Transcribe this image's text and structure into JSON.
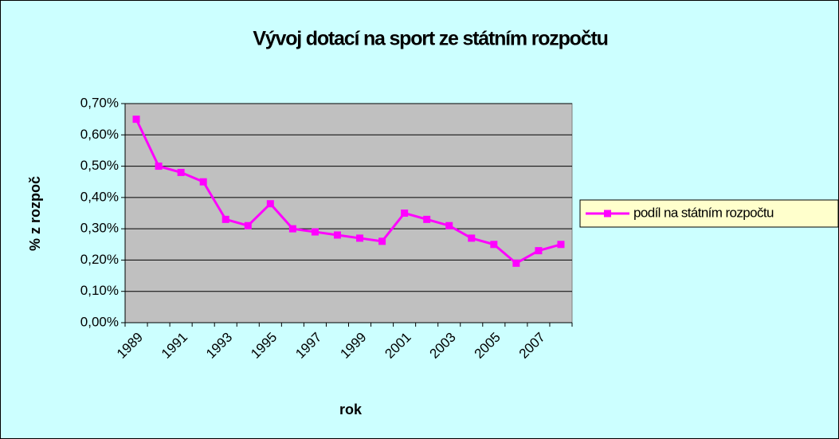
{
  "chart_data": {
    "type": "line",
    "title": "Vývoj dotací na sport ze státním rozpočtu",
    "x_label": "rok",
    "y_label": "% z rozpoč",
    "categories": [
      "1989",
      null,
      "1991",
      null,
      "1993",
      null,
      "1995",
      null,
      "1997",
      null,
      "1999",
      null,
      "2001",
      null,
      "2003",
      null,
      "2005",
      null,
      "2007",
      null
    ],
    "series": [
      {
        "name": "podíl na státním rozpočtu",
        "color": "#ff00ff",
        "values": [
          0.65,
          0.5,
          0.48,
          0.45,
          0.33,
          0.31,
          0.38,
          0.3,
          0.29,
          0.28,
          0.27,
          0.26,
          0.35,
          0.33,
          0.31,
          0.27,
          0.25,
          0.19,
          0.23,
          0.25
        ]
      }
    ],
    "ylim": [
      0,
      0.7
    ],
    "yticks": [
      {
        "value": 0,
        "label": "0,00%"
      },
      {
        "value": 0.1,
        "label": "0,10%"
      },
      {
        "value": 0.2,
        "label": "0,20%"
      },
      {
        "value": 0.3,
        "label": "0,30%"
      },
      {
        "value": 0.4,
        "label": "0,40%"
      },
      {
        "value": 0.5,
        "label": "0,50%"
      },
      {
        "value": 0.6,
        "label": "0,60%"
      },
      {
        "value": 0.7,
        "label": "0,70%"
      }
    ],
    "grid": true,
    "legend": "right"
  }
}
